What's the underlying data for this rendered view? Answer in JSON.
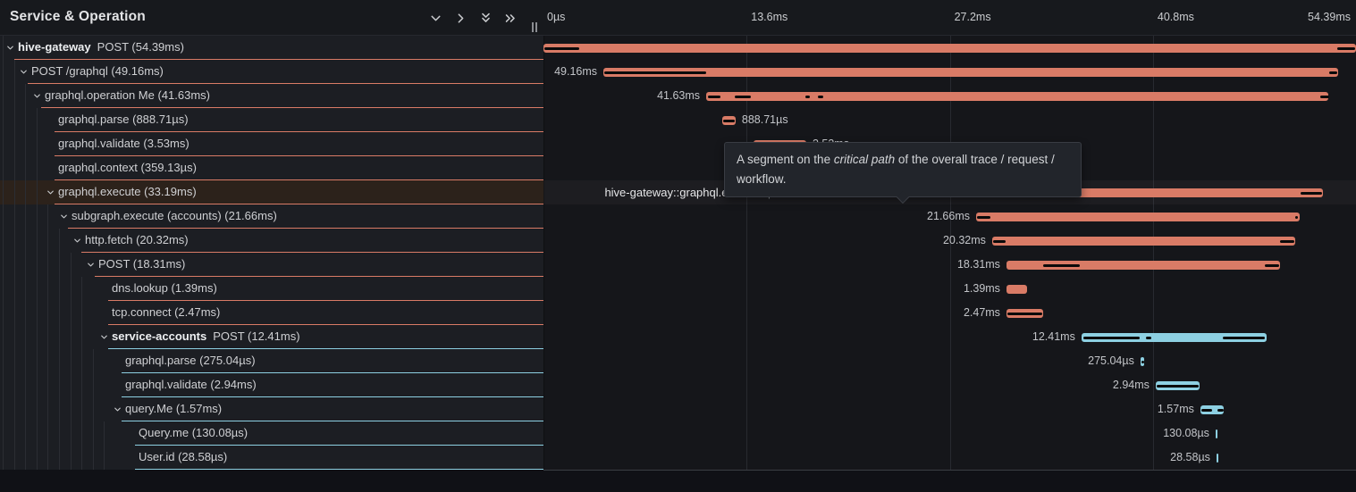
{
  "panel": {
    "title": "Service & Operation"
  },
  "toolbar": {
    "icons": [
      {
        "name": "chevron-down-icon"
      },
      {
        "name": "chevron-right-icon"
      },
      {
        "name": "double-chevron-down-icon"
      },
      {
        "name": "double-chevron-right-icon"
      }
    ]
  },
  "timeline": {
    "total_ms": 54.39,
    "ticks": [
      {
        "label": "0µs",
        "ms": 0,
        "align": "left"
      },
      {
        "label": "13.6ms",
        "ms": 13.6,
        "align": "left"
      },
      {
        "label": "27.2ms",
        "ms": 27.2,
        "align": "left"
      },
      {
        "label": "40.8ms",
        "ms": 40.8,
        "align": "left"
      },
      {
        "label": "54.39ms",
        "ms": 54.39,
        "align": "right"
      }
    ]
  },
  "tooltip": {
    "prefix": "A segment on the ",
    "italic": "critical path",
    "suffix": " of the overall trace / request / workflow."
  },
  "colors": {
    "salmon": "#d97b66",
    "blue": "#8dd0e2",
    "critical_path": "#0a0a0a"
  },
  "spans": [
    {
      "depth": 0,
      "service": "hive-gateway",
      "label": "POST (54.39ms)",
      "expandable": true,
      "color": "salmon",
      "start_ms": 0,
      "duration_ms": 54.39,
      "critical_ms": [
        [
          0.06,
          2.39
        ],
        [
          53.13,
          54.33
        ]
      ],
      "waterfall_label": null,
      "hover": false
    },
    {
      "depth": 1,
      "service": null,
      "label": "POST /graphql (49.16ms)",
      "expandable": true,
      "color": "salmon",
      "start_ms": 4.01,
      "duration_ms": 49.16,
      "critical_ms": [
        [
          4.07,
          10.89
        ],
        [
          52.59,
          53.13
        ]
      ],
      "waterfall_label": {
        "side": "left",
        "text": "49.16ms"
      },
      "hover": false
    },
    {
      "depth": 2,
      "service": null,
      "label": "graphql.operation Me (41.63ms)",
      "expandable": true,
      "color": "salmon",
      "start_ms": 10.89,
      "duration_ms": 41.63,
      "critical_ms": [
        [
          11.01,
          11.85
        ],
        [
          12.8,
          13.88
        ],
        [
          17.53,
          17.83
        ],
        [
          18.37,
          18.73
        ],
        [
          51.99,
          52.59
        ]
      ],
      "waterfall_label": {
        "side": "left",
        "text": "41.63ms"
      },
      "hover": false
    },
    {
      "depth": 3,
      "service": null,
      "label": "graphql.parse (888.71µs)",
      "expandable": false,
      "color": "salmon",
      "start_ms": 11.97,
      "duration_ms": 0.889,
      "critical_ms": [
        [
          12.03,
          12.8
        ]
      ],
      "waterfall_label": {
        "side": "right",
        "text": "888.71µs"
      },
      "hover": false
    },
    {
      "depth": 3,
      "service": null,
      "label": "graphql.validate (3.53ms)",
      "expandable": false,
      "color": "salmon",
      "start_ms": 14.06,
      "duration_ms": 3.53,
      "critical_ms": [
        [
          14.12,
          17.35
        ]
      ],
      "waterfall_label": {
        "side": "right",
        "text": "3.53ms"
      },
      "hover": false
    },
    {
      "depth": 3,
      "service": null,
      "label": "graphql.context (359.13µs)",
      "expandable": false,
      "color": "salmon",
      "start_ms": 17.53,
      "duration_ms": 0.359,
      "critical_ms": [
        [
          17.59,
          17.83
        ]
      ],
      "waterfall_label": {
        "side": "right",
        "text": "359.13µs"
      },
      "hover": false
    },
    {
      "depth": 3,
      "service": null,
      "label": "graphql.execute (33.19ms)",
      "expandable": true,
      "color": "salmon",
      "start_ms": 18.97,
      "duration_ms": 33.19,
      "critical_ms": [
        [
          19.15,
          28.9
        ],
        [
          50.68,
          52.11
        ]
      ],
      "waterfall_label": {
        "side": "left",
        "name": "hive-gateway::graphql.execute",
        "sep": "|",
        "duration": "33.19ms"
      },
      "hover": true
    },
    {
      "depth": 4,
      "service": null,
      "label": "subgraph.execute (accounts) (21.66ms)",
      "expandable": true,
      "color": "salmon",
      "start_ms": 28.96,
      "duration_ms": 21.66,
      "critical_ms": [
        [
          29.02,
          29.92
        ],
        [
          50.32,
          50.5
        ]
      ],
      "waterfall_label": {
        "side": "left",
        "text": "21.66ms"
      },
      "hover": false
    },
    {
      "depth": 5,
      "service": null,
      "label": "http.fetch (20.32ms)",
      "expandable": true,
      "color": "salmon",
      "start_ms": 30.03,
      "duration_ms": 20.32,
      "critical_ms": [
        [
          30.09,
          30.93
        ],
        [
          49.3,
          50.26
        ]
      ],
      "waterfall_label": {
        "side": "left",
        "text": "20.32ms"
      },
      "hover": false
    },
    {
      "depth": 6,
      "service": null,
      "label": "POST (18.31ms)",
      "expandable": true,
      "color": "salmon",
      "start_ms": 30.99,
      "duration_ms": 18.31,
      "critical_ms": [
        [
          33.45,
          35.9
        ],
        [
          48.28,
          49.24
        ]
      ],
      "waterfall_label": {
        "side": "left",
        "text": "18.31ms"
      },
      "hover": false
    },
    {
      "depth": 7,
      "service": null,
      "label": "dns.lookup (1.39ms)",
      "expandable": false,
      "color": "salmon",
      "start_ms": 30.99,
      "duration_ms": 1.39,
      "critical_ms": [],
      "waterfall_label": {
        "side": "left",
        "text": "1.39ms"
      },
      "hover": false
    },
    {
      "depth": 7,
      "service": null,
      "label": "tcp.connect (2.47ms)",
      "expandable": false,
      "color": "salmon",
      "start_ms": 30.99,
      "duration_ms": 2.47,
      "critical_ms": [
        [
          31.05,
          33.39
        ]
      ],
      "waterfall_label": {
        "side": "left",
        "text": "2.47ms"
      },
      "hover": false
    },
    {
      "depth": 7,
      "service": "service-accounts",
      "label": "POST (12.41ms)",
      "expandable": true,
      "color": "blue",
      "start_ms": 36.01,
      "duration_ms": 12.41,
      "critical_ms": [
        [
          36.14,
          39.91
        ],
        [
          40.33,
          40.69
        ],
        [
          45.47,
          48.28
        ]
      ],
      "waterfall_label": {
        "side": "left",
        "text": "12.41ms"
      },
      "hover": false
    },
    {
      "depth": 8,
      "service": null,
      "label": "graphql.parse (275.04µs)",
      "expandable": false,
      "color": "blue",
      "start_ms": 39.96,
      "duration_ms": 0.275,
      "critical_ms": [
        [
          40.03,
          40.21
        ]
      ],
      "waterfall_label": {
        "side": "left",
        "text": "275.04µs"
      },
      "hover": false
    },
    {
      "depth": 8,
      "service": null,
      "label": "graphql.validate (2.94ms)",
      "expandable": false,
      "color": "blue",
      "start_ms": 40.98,
      "duration_ms": 2.94,
      "critical_ms": [
        [
          41.05,
          43.86
        ]
      ],
      "waterfall_label": {
        "side": "left",
        "text": "2.94ms"
      },
      "hover": false
    },
    {
      "depth": 8,
      "service": null,
      "label": "query.Me (1.57ms)",
      "expandable": true,
      "color": "blue",
      "start_ms": 43.97,
      "duration_ms": 1.57,
      "critical_ms": [
        [
          44.04,
          44.76
        ],
        [
          45.11,
          45.53
        ]
      ],
      "waterfall_label": {
        "side": "left",
        "text": "1.57ms"
      },
      "hover": false
    },
    {
      "depth": 9,
      "service": null,
      "label": "Query.me (130.08µs)",
      "expandable": false,
      "color": "blue",
      "start_ms": 44.99,
      "duration_ms": 0.13,
      "critical_ms": [],
      "waterfall_label": {
        "side": "left",
        "text": "130.08µs"
      },
      "hover": false
    },
    {
      "depth": 9,
      "service": null,
      "label": "User.id (28.58µs)",
      "expandable": false,
      "color": "blue",
      "start_ms": 45.05,
      "duration_ms": 0.0286,
      "critical_ms": [],
      "waterfall_label": {
        "side": "left",
        "text": "28.58µs"
      },
      "hover": false
    }
  ]
}
